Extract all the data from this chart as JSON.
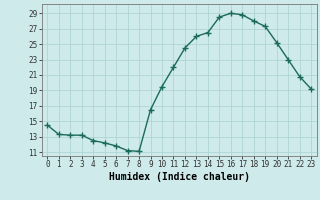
{
  "x": [
    0,
    1,
    2,
    3,
    4,
    5,
    6,
    7,
    8,
    9,
    10,
    11,
    12,
    13,
    14,
    15,
    16,
    17,
    18,
    19,
    20,
    21,
    22,
    23
  ],
  "y": [
    14.5,
    13.3,
    13.2,
    13.2,
    12.5,
    12.2,
    11.8,
    11.2,
    11.1,
    16.5,
    19.5,
    22.0,
    24.5,
    26.0,
    26.5,
    28.5,
    29.0,
    28.8,
    28.0,
    27.3,
    25.2,
    23.0,
    20.8,
    19.2
  ],
  "line_color": "#1a6b5a",
  "marker": "+",
  "marker_size": 4,
  "bg_color": "#ceeaea",
  "grid_color": "#b0d4d4",
  "xlabel": "Humidex (Indice chaleur)",
  "xlim": [
    -0.5,
    23.5
  ],
  "ylim": [
    10.5,
    30.2
  ],
  "yticks": [
    11,
    13,
    15,
    17,
    19,
    21,
    23,
    25,
    27,
    29
  ],
  "xticks": [
    0,
    1,
    2,
    3,
    4,
    5,
    6,
    7,
    8,
    9,
    10,
    11,
    12,
    13,
    14,
    15,
    16,
    17,
    18,
    19,
    20,
    21,
    22,
    23
  ],
  "tick_label_fontsize": 5.5,
  "xlabel_fontsize": 7,
  "line_width": 1.0,
  "marker_edge_width": 1.0
}
